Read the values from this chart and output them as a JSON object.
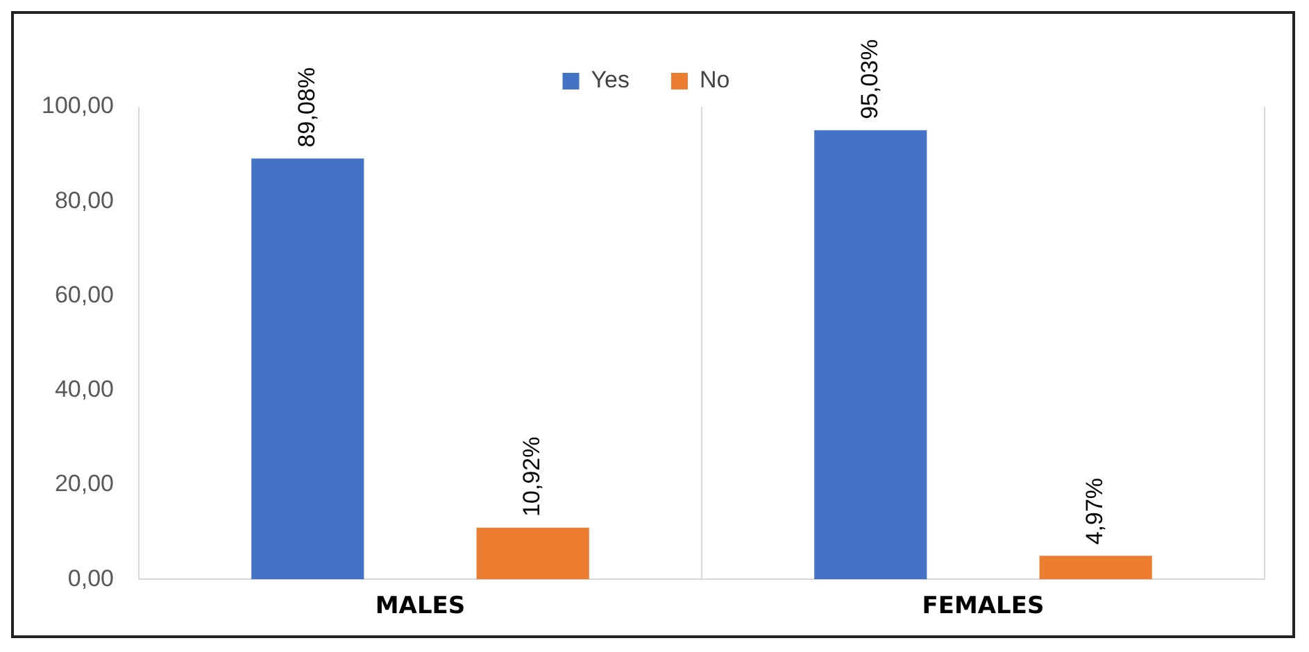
{
  "chart_data": {
    "type": "bar",
    "categories": [
      "MALES",
      "FEMALES"
    ],
    "series": [
      {
        "name": "Yes",
        "color": "#4472c4",
        "values": [
          89.08,
          95.03
        ],
        "value_labels": [
          "89,08%",
          "95,03%"
        ]
      },
      {
        "name": "No",
        "color": "#ed7d31",
        "values": [
          10.92,
          4.97
        ],
        "value_labels": [
          "10,92%",
          "4,97%"
        ]
      }
    ],
    "ylim": [
      0,
      100
    ],
    "yticks": [
      {
        "value": 0,
        "label": "0,00"
      },
      {
        "value": 20,
        "label": "20,00"
      },
      {
        "value": 40,
        "label": "40,00"
      },
      {
        "value": 60,
        "label": "60,00"
      },
      {
        "value": 80,
        "label": "80,00"
      },
      {
        "value": 100,
        "label": "100,00"
      }
    ],
    "grid": "x",
    "legend": "top"
  }
}
